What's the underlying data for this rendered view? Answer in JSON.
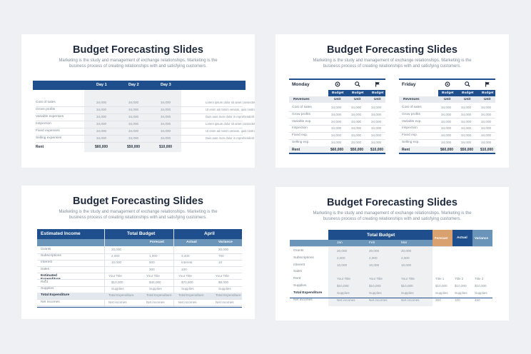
{
  "common": {
    "title": "Budget Forecasting Slides",
    "subtitle": "Marketing is the study and management of exchange relationships. Marketing is the business process of creating relationships with and satisfying customers."
  },
  "slide1": {
    "days": [
      "Day 1",
      "Day 2",
      "Day 3"
    ],
    "rows": [
      "Cost of sales",
      "Gross profits",
      "Variable expenses",
      "Inspection",
      "Fixed expenses",
      "Selling expenses"
    ],
    "value": "34,000",
    "notes": [
      "Lorem ipsum dolor sit amet consectetur",
      "Ut enim ad minim veniam, quis nostrud",
      "Duis aute irure dolor in reprehenderit",
      "Lorem ipsum dolor sit amet consectetur",
      "Ut enim ad minim veniam, quis nostrud",
      "Duis aute irure dolor in reprehenderit"
    ],
    "rent_label": "Rent",
    "totals": [
      "$60,000",
      "$50,000",
      "$10,000"
    ]
  },
  "slide2": {
    "tables": [
      {
        "day": "Monday"
      },
      {
        "day": "Friday"
      }
    ],
    "budget": "Budget",
    "unit": "Unit",
    "revenues": "Revenues",
    "rows": [
      "Cost of sales",
      "Grow profits",
      "Variable exp.",
      "Inspection",
      "Fixed exp.",
      "Selling exp."
    ],
    "value": "34,000",
    "rent_label": "Rent",
    "totals": [
      "$60,000",
      "$50,000",
      "$10,000"
    ]
  },
  "slide3": {
    "headers": {
      "estimated_income": "Estimated Income",
      "total_budget": "Total Budget",
      "april": "April",
      "forecast": "Forecast",
      "actual": "Actual",
      "variance": "Variance"
    },
    "rows": [
      {
        "label": "Grants",
        "c1": "20,000",
        "c2": "",
        "c3": "",
        "c4": "20,000"
      },
      {
        "label": "Subscriptions",
        "c1": "2,000",
        "c2": "1,000",
        "c3": "3,400",
        "c4": "700"
      },
      {
        "label": "Interest",
        "c1": "10,000",
        "c2": "500",
        "c3": "Interest",
        "c4": "10"
      },
      {
        "label": "Sales",
        "c1": "",
        "c2": "300",
        "c3": "100",
        "c4": ""
      },
      {
        "label": "Estimated Expenditure",
        "c1": "Your Title",
        "c2": "Your Title",
        "c3": "Your Title",
        "c4": "Your Title"
      },
      {
        "label": "Rent",
        "c1": "$10,000",
        "c2": "$45,000",
        "c3": "$70,600",
        "c4": "$9,000"
      },
      {
        "label": "Supplies",
        "c1": "Supplies",
        "c2": "Supplies",
        "c3": "Supplies",
        "c4": "Supplies"
      },
      {
        "label": "Total Expenditure",
        "c1": "Total Expenditure",
        "c2": "Total Expenditure",
        "c3": "Total Expenditure",
        "c4": "Total Expenditure"
      },
      {
        "label": "Net incomes",
        "c1": "Net incomes",
        "c2": "Net incomes",
        "c3": "Net incomes",
        "c4": "Net incomes"
      }
    ]
  },
  "slide4": {
    "headers": {
      "total_budget": "Total Budget",
      "forecast": "Forecast",
      "actual": "Actual",
      "variance": "Variance"
    },
    "months": [
      "Jan",
      "Feb",
      "Mar"
    ],
    "rows": [
      {
        "label": "Grants",
        "m1": "20,000",
        "m2": "20,000",
        "m3": "20,000",
        "f": "",
        "a": "",
        "v": ""
      },
      {
        "label": "Subscriptions",
        "m1": "2,000",
        "m2": "2,000",
        "m3": "2,000",
        "f": "",
        "a": "",
        "v": ""
      },
      {
        "label": "Interest",
        "m1": "10,000",
        "m2": "10,000",
        "m3": "10,000",
        "f": "",
        "a": "",
        "v": ""
      },
      {
        "label": "Sales",
        "m1": "",
        "m2": "",
        "m3": "",
        "f": "",
        "a": "",
        "v": ""
      },
      {
        "label": "Rent",
        "m1": "Your Title",
        "m2": "Your Title",
        "m3": "Your Title",
        "f": "Title 1",
        "a": "Title 2",
        "v": "Title 3"
      },
      {
        "label": "Supplies",
        "m1": "$10,000",
        "m2": "$10,000",
        "m3": "$10,000",
        "f": "$10,000",
        "a": "$10,000",
        "v": "$10,000"
      },
      {
        "label": "Total Expenditure",
        "m1": "Supplies",
        "m2": "Supplies",
        "m3": "Supplies",
        "f": "Supplies",
        "a": "Supplies",
        "v": "Supplies"
      },
      {
        "label": "Net incomes",
        "m1": "Net incomes",
        "m2": "Net incomes",
        "m3": "Net incomes",
        "f": "300",
        "a": "100",
        "v": "450"
      }
    ]
  },
  "colors": {
    "blue": "#1f4e8c",
    "light_blue": "#6a94b8",
    "orange": "#d9a070",
    "grey_band": "#eef0f2"
  }
}
